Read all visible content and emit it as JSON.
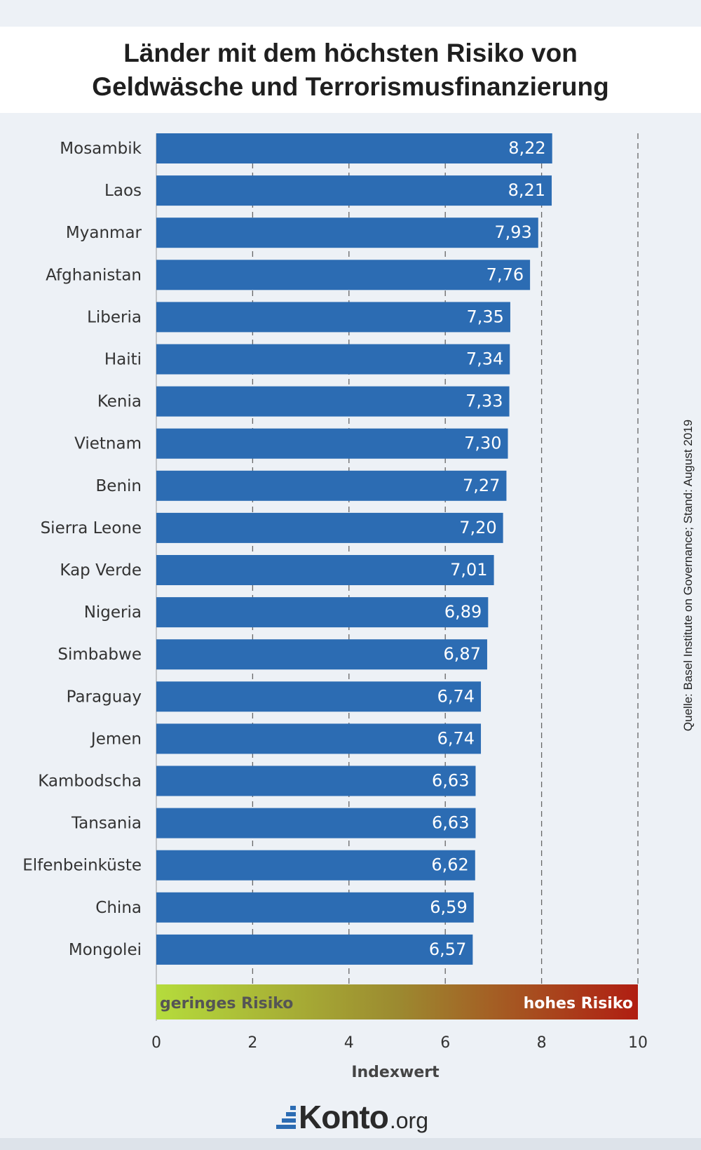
{
  "header": {
    "title_line1": "Länder mit dem höchsten Risiko von",
    "title_line2": "Geldwäsche und Terrorismusfinanzierung"
  },
  "source_note": "Quelle: Basel Institute on Governance; Stand: August 2019",
  "logo": {
    "name": "Konto",
    "tld": ".org"
  },
  "colors": {
    "bar": "#2c6cb3",
    "low_risk": "#b5dc3c",
    "high_risk": "#b01e12"
  },
  "chart_data": {
    "type": "bar",
    "orientation": "horizontal",
    "categories": [
      "Mosambik",
      "Laos",
      "Myanmar",
      "Afghanistan",
      "Liberia",
      "Haiti",
      "Kenia",
      "Vietnam",
      "Benin",
      "Sierra Leone",
      "Kap Verde",
      "Nigeria",
      "Simbabwe",
      "Paraguay",
      "Jemen",
      "Kambodscha",
      "Tansania",
      "Elfenbeinküste",
      "China",
      "Mongolei"
    ],
    "values": [
      8.22,
      8.21,
      7.93,
      7.76,
      7.35,
      7.34,
      7.33,
      7.3,
      7.27,
      7.2,
      7.01,
      6.89,
      6.87,
      6.74,
      6.74,
      6.63,
      6.63,
      6.62,
      6.59,
      6.57
    ],
    "value_labels": [
      "8,22",
      "8,21",
      "7,93",
      "7,76",
      "7,35",
      "7,34",
      "7,33",
      "7,30",
      "7,27",
      "7,20",
      "7,01",
      "6,89",
      "6,87",
      "6,74",
      "6,74",
      "6,63",
      "6,63",
      "6,62",
      "6,59",
      "6,57"
    ],
    "xlabel": "Indexwert",
    "xlim": [
      0,
      10
    ],
    "xticks": [
      0,
      2,
      4,
      6,
      8,
      10
    ],
    "grid": "vertical-dashed",
    "scale_band": {
      "low_label": "geringes Risiko",
      "high_label": "hohes Risiko"
    }
  }
}
